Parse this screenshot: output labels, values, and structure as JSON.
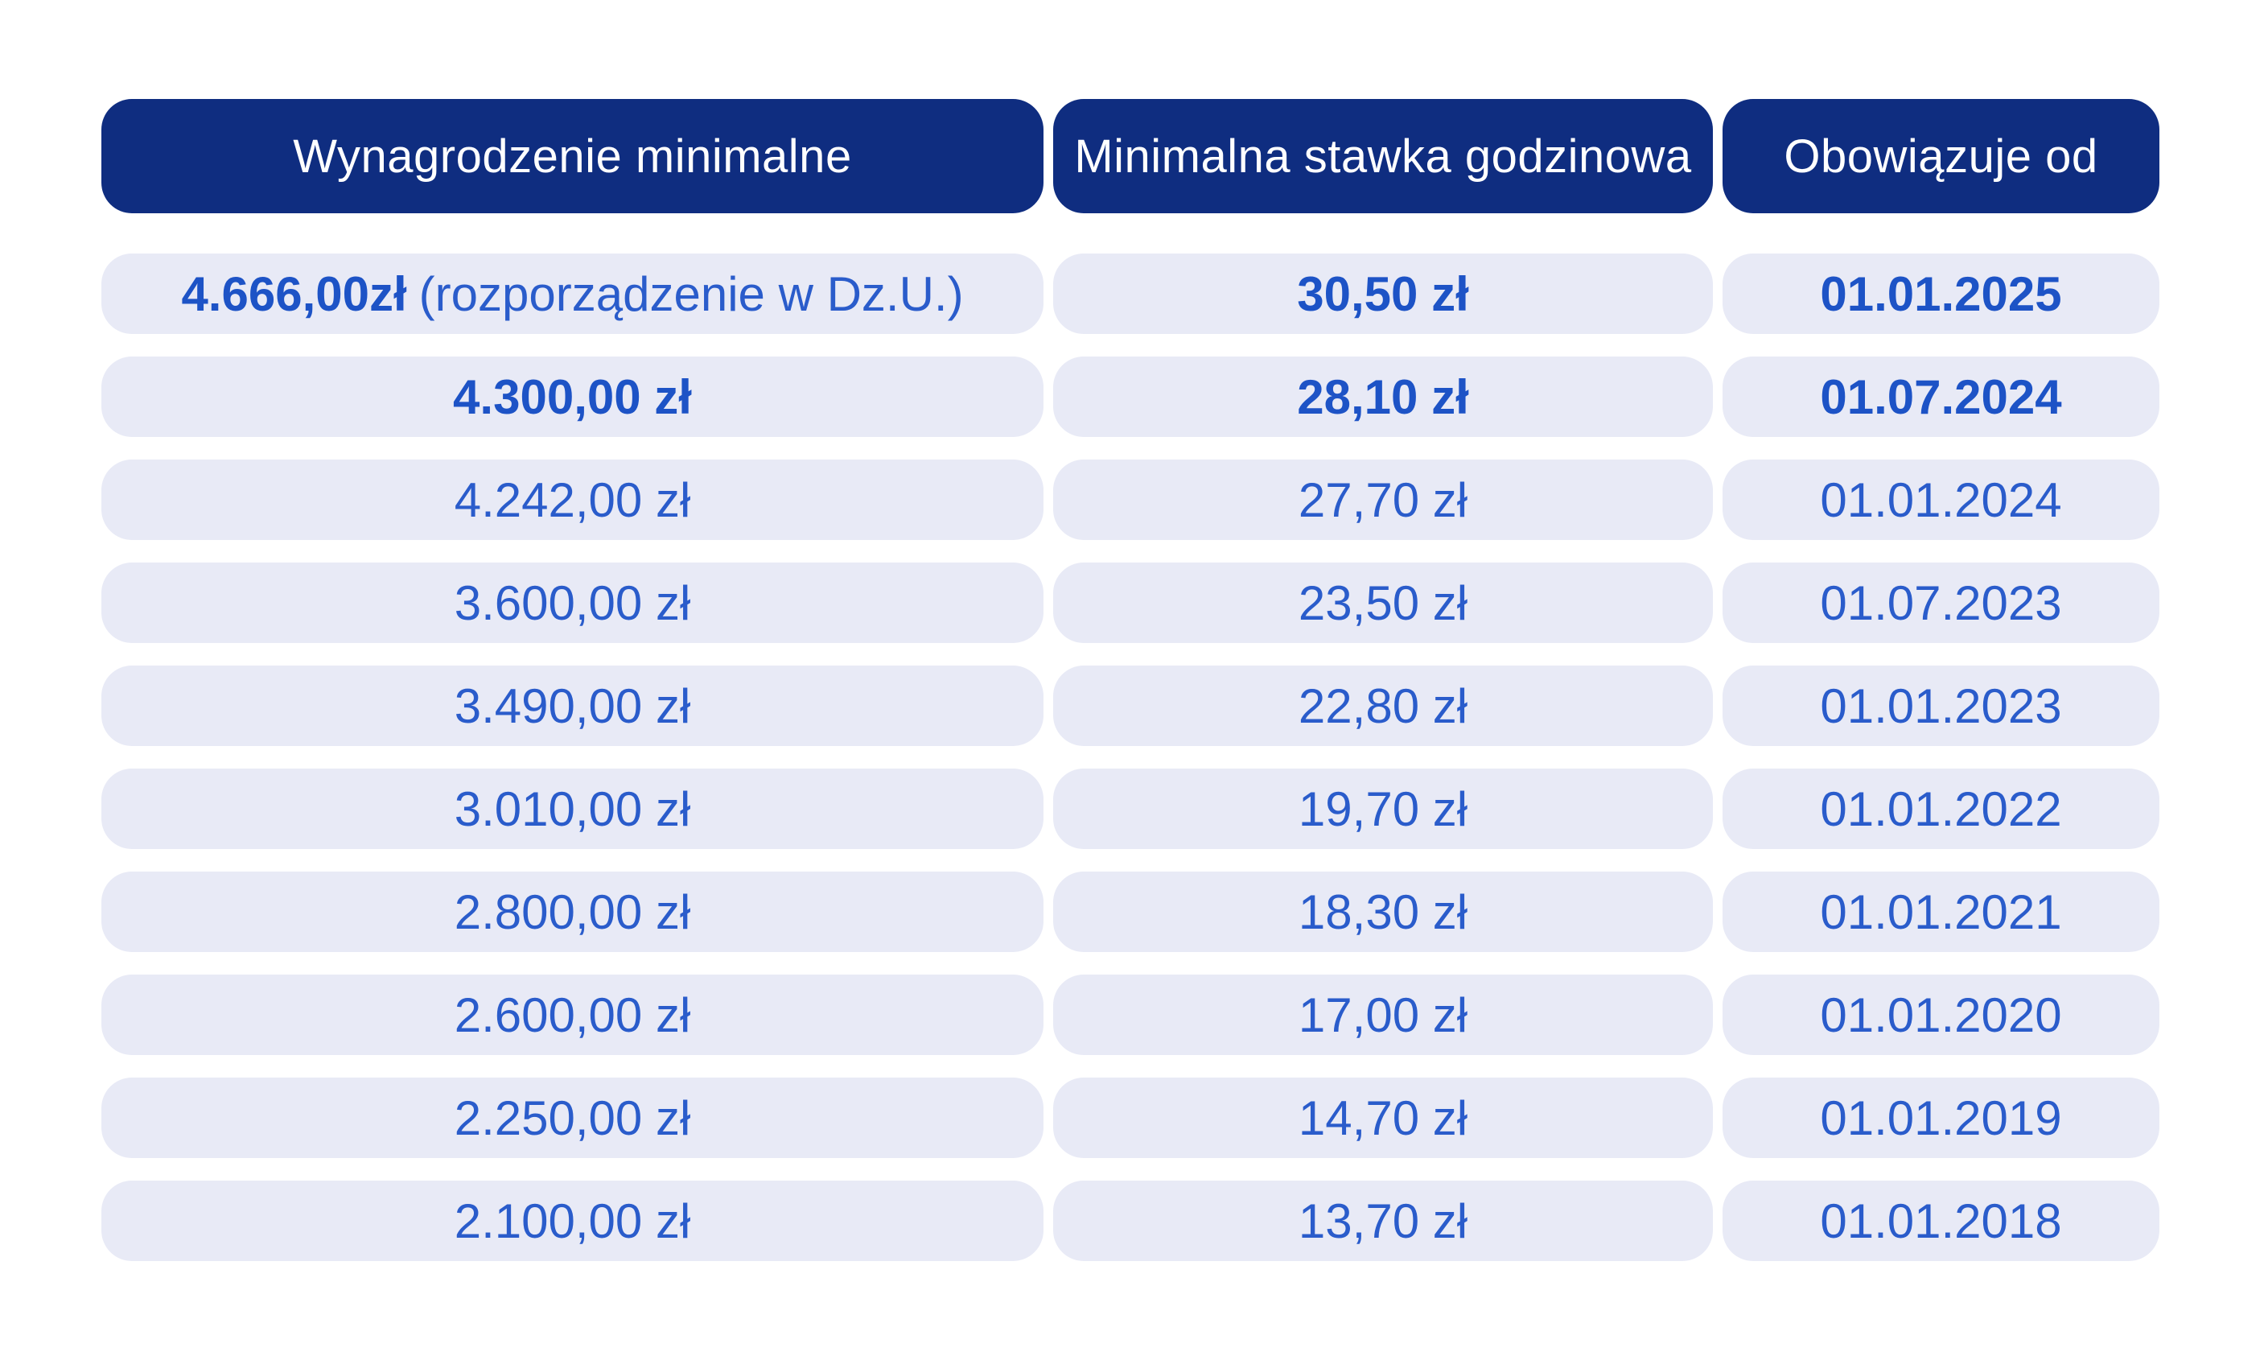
{
  "chart_data": {
    "type": "table",
    "columns": [
      "Wynagrodzenie minimalne",
      "Minimalna stawka godzinowa",
      "Obowiązuje od"
    ],
    "rows": [
      {
        "wynagrodzenie": "4.666,00zł",
        "wynagrodzenie_note": "(rozporządzenie w Dz.U.)",
        "stawka_godzinowa": "30,50 zł",
        "obowiazuje_od": "01.01.2025",
        "emphasis": true
      },
      {
        "wynagrodzenie": "4.300,00 zł",
        "wynagrodzenie_note": "",
        "stawka_godzinowa": "28,10 zł",
        "obowiazuje_od": "01.07.2024",
        "emphasis": true
      },
      {
        "wynagrodzenie": "4.242,00 zł",
        "wynagrodzenie_note": "",
        "stawka_godzinowa": "27,70 zł",
        "obowiazuje_od": "01.01.2024",
        "emphasis": false
      },
      {
        "wynagrodzenie": "3.600,00 zł",
        "wynagrodzenie_note": "",
        "stawka_godzinowa": "23,50 zł",
        "obowiazuje_od": "01.07.2023",
        "emphasis": false
      },
      {
        "wynagrodzenie": "3.490,00 zł",
        "wynagrodzenie_note": "",
        "stawka_godzinowa": "22,80 zł",
        "obowiazuje_od": "01.01.2023",
        "emphasis": false
      },
      {
        "wynagrodzenie": "3.010,00 zł",
        "wynagrodzenie_note": "",
        "stawka_godzinowa": "19,70 zł",
        "obowiazuje_od": "01.01.2022",
        "emphasis": false
      },
      {
        "wynagrodzenie": "2.800,00 zł",
        "wynagrodzenie_note": "",
        "stawka_godzinowa": "18,30 zł",
        "obowiazuje_od": "01.01.2021",
        "emphasis": false
      },
      {
        "wynagrodzenie": "2.600,00 zł",
        "wynagrodzenie_note": "",
        "stawka_godzinowa": "17,00 zł",
        "obowiazuje_od": "01.01.2020",
        "emphasis": false
      },
      {
        "wynagrodzenie": "2.250,00 zł",
        "wynagrodzenie_note": "",
        "stawka_godzinowa": "14,70 zł",
        "obowiazuje_od": "01.01.2019",
        "emphasis": false
      },
      {
        "wynagrodzenie": "2.100,00 zł",
        "wynagrodzenie_note": "",
        "stawka_godzinowa": "13,70 zł",
        "obowiazuje_od": "01.01.2018",
        "emphasis": false
      }
    ],
    "layout": {
      "grid": "off",
      "legend": "none"
    },
    "colors": {
      "header_bg": "#0f2d80",
      "header_text": "#ffffff",
      "row_bg": "#e8eaf6",
      "value_color": "#2a5ccb",
      "value_bold_color": "#1d53c6"
    }
  }
}
